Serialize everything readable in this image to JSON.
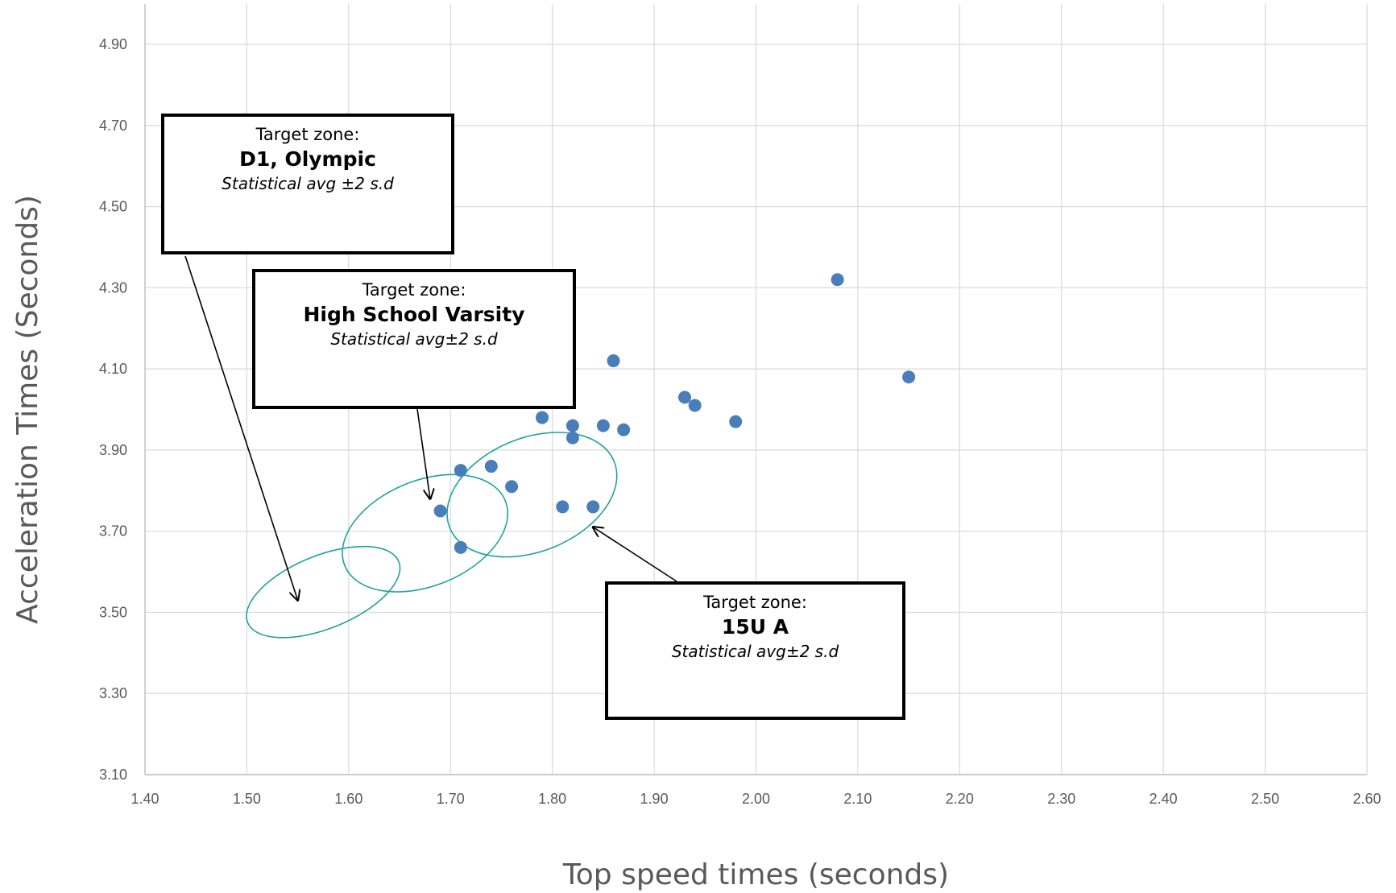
{
  "chart_data": {
    "type": "scatter",
    "title": "",
    "xlabel": "Top speed times (seconds)",
    "ylabel": "Acceleration Times (Seconds)",
    "xlim": [
      1.4,
      2.6
    ],
    "ylim": [
      3.1,
      4.9
    ],
    "x_ticks": [
      "1.40",
      "1.50",
      "1.60",
      "1.70",
      "1.80",
      "1.90",
      "2.00",
      "2.10",
      "2.20",
      "2.30",
      "2.40",
      "2.50",
      "2.60"
    ],
    "y_ticks": [
      "3.10",
      "3.30",
      "3.50",
      "3.70",
      "3.90",
      "4.10",
      "4.30",
      "4.50",
      "4.70",
      "4.90"
    ],
    "grid": true,
    "legend": false,
    "colors": {
      "points": "#4a7ebb",
      "zones": "#1fa39a",
      "grid": "#d9d9d9"
    },
    "points": [
      {
        "x": 1.69,
        "y": 3.75
      },
      {
        "x": 1.71,
        "y": 3.85
      },
      {
        "x": 1.71,
        "y": 3.66
      },
      {
        "x": 1.74,
        "y": 3.86
      },
      {
        "x": 1.76,
        "y": 3.81
      },
      {
        "x": 1.79,
        "y": 3.98
      },
      {
        "x": 1.81,
        "y": 3.76
      },
      {
        "x": 1.82,
        "y": 3.96
      },
      {
        "x": 1.82,
        "y": 3.93
      },
      {
        "x": 1.84,
        "y": 3.76
      },
      {
        "x": 1.85,
        "y": 3.96
      },
      {
        "x": 1.86,
        "y": 4.12
      },
      {
        "x": 1.87,
        "y": 3.95
      },
      {
        "x": 1.93,
        "y": 4.03
      },
      {
        "x": 1.94,
        "y": 4.01
      },
      {
        "x": 1.98,
        "y": 3.97
      },
      {
        "x": 2.08,
        "y": 4.32
      },
      {
        "x": 2.15,
        "y": 4.08
      }
    ],
    "target_zones": [
      {
        "center": [
          1.575,
          3.55
        ],
        "semi_axis_x": 0.08,
        "semi_axis_y": 0.09,
        "rotation_deg": -22
      },
      {
        "center": [
          1.675,
          3.695
        ],
        "semi_axis_x": 0.085,
        "semi_axis_y": 0.13,
        "rotation_deg": -22
      },
      {
        "center": [
          1.78,
          3.79
        ],
        "semi_axis_x": 0.087,
        "semi_axis_y": 0.14,
        "rotation_deg": -22
      }
    ]
  },
  "annotations": [
    {
      "line1": "Target zone:",
      "line2": "D1, Olympic",
      "line3": "Statistical avg ±2 s.d",
      "arrow_to": [
        1.55,
        3.53
      ]
    },
    {
      "line1": "Target zone:",
      "line2": "High School Varsity",
      "line3": "Statistical avg±2 s.d",
      "arrow_to": [
        1.68,
        3.78
      ]
    },
    {
      "line1": "Target zone:",
      "line2": "15U A",
      "line3": "Statistical avg±2 s.d",
      "arrow_to": [
        1.84,
        3.71
      ]
    }
  ]
}
